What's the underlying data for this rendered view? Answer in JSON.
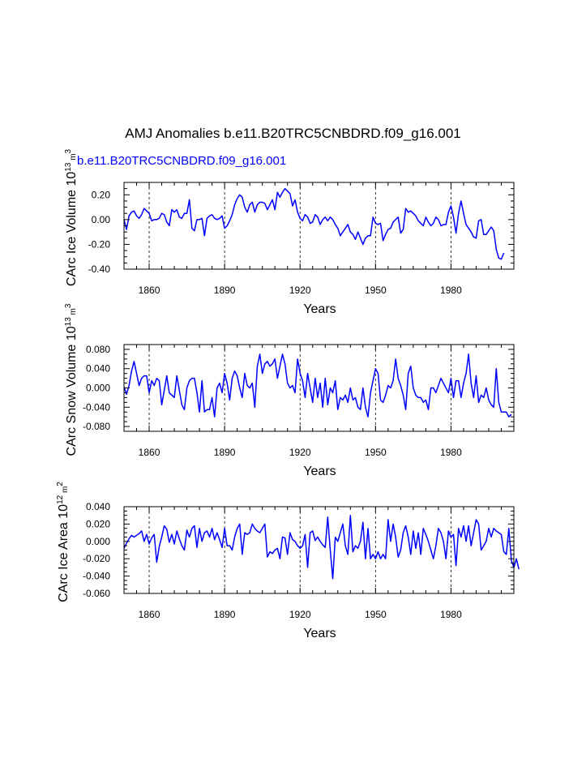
{
  "title": "AMJ Anomalies b.e11.B20TRC5CNBDRD.f09_g16.001",
  "case_label": "b.e11.B20TRC5CNBDRD.f09_g16.001",
  "colors": {
    "series": "#0000ff",
    "axis": "#000000",
    "refline": "#000000"
  },
  "chart_data": [
    {
      "type": "line",
      "ylabel": "CArc Ice Volume 10^13 m^3",
      "ylabel_parts": {
        "main": "CArc Ice Volume 10",
        "exp1": "13",
        "mid": " m",
        "exp2": "3"
      },
      "xlabel": "Years",
      "xlim": [
        1850,
        2005
      ],
      "ylim": [
        -0.4,
        0.3
      ],
      "xticks": [
        1860,
        1890,
        1920,
        1950,
        1980
      ],
      "yticks": [
        -0.4,
        -0.2,
        0.0,
        0.2
      ],
      "ytick_labels": [
        "-0.40",
        "-0.20",
        "0.00",
        "0.20"
      ],
      "refline_years": [
        1860,
        1890,
        1920,
        1950,
        1980
      ],
      "series": [
        {
          "name": "b.e11.B20TRC5CNBDRD.f09_g16.001",
          "x_start": 1850,
          "values": [
            0.0,
            -0.08,
            0.03,
            0.06,
            0.07,
            0.03,
            0.01,
            0.04,
            0.09,
            0.07,
            0.05,
            -0.01,
            0.0,
            0.0,
            0.01,
            0.05,
            0.04,
            -0.02,
            -0.05,
            0.08,
            0.06,
            0.08,
            0.02,
            0.01,
            0.05,
            0.05,
            0.16,
            -0.07,
            -0.09,
            0.0,
            0.0,
            0.01,
            -0.13,
            0.01,
            0.03,
            0.04,
            0.01,
            0.0,
            0.01,
            0.03,
            -0.07,
            -0.05,
            -0.01,
            0.04,
            0.12,
            0.17,
            0.2,
            0.18,
            0.1,
            0.06,
            0.12,
            0.14,
            0.06,
            0.12,
            0.14,
            0.14,
            0.13,
            0.08,
            0.12,
            0.16,
            0.08,
            0.22,
            0.18,
            0.22,
            0.25,
            0.23,
            0.21,
            0.11,
            0.16,
            0.06,
            0.01,
            -0.01,
            0.04,
            0.02,
            -0.03,
            -0.02,
            0.04,
            0.02,
            -0.04,
            0.0,
            0.02,
            -0.01,
            0.02,
            0.0,
            -0.04,
            -0.07,
            -0.13,
            -0.1,
            -0.07,
            -0.04,
            -0.1,
            -0.12,
            -0.16,
            -0.1,
            -0.15,
            -0.2,
            -0.15,
            -0.13,
            -0.13,
            0.02,
            -0.03,
            -0.04,
            -0.03,
            -0.17,
            -0.12,
            -0.08,
            -0.07,
            -0.02,
            0.0,
            0.02,
            -0.11,
            -0.08,
            0.09,
            0.06,
            0.07,
            0.05,
            0.03,
            -0.01,
            -0.03,
            -0.05,
            0.02,
            -0.02,
            -0.05,
            -0.03,
            0.02,
            0.0,
            -0.05,
            -0.04,
            -0.04,
            0.06,
            0.11,
            0.02,
            -0.11,
            0.05,
            0.15,
            0.05,
            -0.04,
            -0.07,
            -0.1,
            -0.14,
            -0.15,
            -0.01,
            0.0,
            -0.12,
            -0.12,
            -0.09,
            -0.06,
            -0.09,
            -0.24,
            -0.31,
            -0.32,
            -0.27
          ]
        }
      ]
    },
    {
      "type": "line",
      "ylabel": "CArc Snow Volume 10^13 m^3",
      "ylabel_parts": {
        "main": "CArc Snow Volume 10",
        "exp1": "13",
        "mid": " m",
        "exp2": "3"
      },
      "xlabel": "Years",
      "xlim": [
        1850,
        2005
      ],
      "ylim": [
        -0.09,
        0.09
      ],
      "xticks": [
        1860,
        1890,
        1920,
        1950,
        1980
      ],
      "yticks": [
        -0.08,
        -0.04,
        0.0,
        0.04,
        0.08
      ],
      "ytick_labels": [
        "-0.080",
        "-0.040",
        "0.000",
        "0.040",
        "0.080"
      ],
      "refline_years": [
        1860,
        1890,
        1920,
        1950,
        1980
      ],
      "series": [
        {
          "name": "b.e11.B20TRC5CNBDRD.f09_g16.001",
          "x_start": 1850,
          "values": [
            0.002,
            -0.013,
            0.005,
            0.035,
            0.055,
            0.03,
            0.005,
            0.02,
            0.025,
            0.025,
            -0.01,
            0.015,
            0.005,
            0.02,
            0.015,
            -0.035,
            -0.005,
            0.025,
            -0.01,
            -0.015,
            -0.02,
            0.025,
            -0.005,
            -0.035,
            -0.045,
            0.0,
            0.015,
            0.02,
            0.02,
            -0.01,
            -0.05,
            0.015,
            -0.05,
            -0.045,
            -0.045,
            -0.02,
            -0.06,
            0.0,
            0.01,
            -0.01,
            0.03,
            0.01,
            -0.025,
            0.02,
            0.035,
            0.025,
            0.0,
            -0.02,
            0.03,
            0.005,
            0.0,
            0.01,
            -0.04,
            0.045,
            0.07,
            0.03,
            0.05,
            0.055,
            0.045,
            0.05,
            0.06,
            0.02,
            0.045,
            0.07,
            0.05,
            0.01,
            0.0,
            0.005,
            -0.01,
            0.06,
            0.03,
            0.015,
            -0.02,
            0.03,
            0.0,
            -0.03,
            0.02,
            -0.02,
            0.01,
            -0.04,
            0.02,
            -0.035,
            0.0,
            -0.01,
            0.015,
            -0.045,
            -0.02,
            -0.025,
            -0.015,
            -0.03,
            0.0,
            -0.025,
            -0.02,
            -0.04,
            -0.045,
            0.0,
            -0.04,
            -0.06,
            -0.01,
            0.015,
            0.04,
            0.03,
            -0.025,
            -0.03,
            -0.015,
            0.005,
            0.0,
            0.015,
            0.06,
            0.02,
            0.005,
            -0.015,
            -0.045,
            0.03,
            0.045,
            0.0,
            -0.015,
            -0.02,
            -0.02,
            -0.03,
            -0.025,
            -0.045,
            0.0,
            0.0,
            -0.01,
            0.005,
            0.02,
            0.01,
            0.0,
            -0.01,
            0.02,
            -0.02,
            0.015,
            0.015,
            -0.02,
            0.01,
            0.03,
            0.07,
            0.01,
            -0.02,
            0.025,
            -0.03,
            -0.015,
            -0.02,
            0.0,
            -0.025,
            -0.035,
            -0.04,
            0.04,
            -0.03,
            -0.05,
            -0.05,
            -0.05,
            -0.06,
            -0.055
          ]
        }
      ]
    },
    {
      "type": "line",
      "ylabel": "CArc Ice Area 10^12 m^2",
      "ylabel_parts": {
        "main": "CArc Ice Area 10",
        "exp1": "12",
        "mid": " m",
        "exp2": "2"
      },
      "xlabel": "Years",
      "xlim": [
        1850,
        2005
      ],
      "ylim": [
        -0.06,
        0.04
      ],
      "xticks": [
        1860,
        1890,
        1920,
        1950,
        1980
      ],
      "yticks": [
        -0.06,
        -0.04,
        -0.02,
        0.0,
        0.02,
        0.04
      ],
      "ytick_labels": [
        "-0.060",
        "-0.040",
        "-0.020",
        "0.000",
        "0.020",
        "0.040"
      ],
      "refline_years": [
        1860,
        1890,
        1920,
        1950,
        1980
      ],
      "series": [
        {
          "name": "b.e11.B20TRC5CNBDRD.f09_g16.001",
          "x_start": 1850,
          "values": [
            -0.008,
            -0.002,
            0.003,
            0.007,
            0.005,
            0.007,
            0.009,
            0.012,
            0.0,
            0.008,
            -0.003,
            0.004,
            0.008,
            -0.024,
            -0.006,
            0.005,
            0.018,
            0.014,
            -0.001,
            0.008,
            -0.003,
            0.012,
            0.003,
            -0.005,
            -0.01,
            0.013,
            0.005,
            0.015,
            0.018,
            -0.007,
            0.015,
            0.0,
            0.01,
            0.012,
            0.005,
            0.015,
            0.002,
            0.01,
            0.002,
            -0.007,
            0.015,
            -0.005,
            -0.005,
            -0.01,
            0.005,
            0.015,
            0.02,
            -0.015,
            0.01,
            0.008,
            0.01,
            0.02,
            0.015,
            0.012,
            0.01,
            0.015,
            0.02,
            -0.018,
            -0.012,
            -0.014,
            -0.01,
            -0.008,
            -0.02,
            0.005,
            0.004,
            -0.015,
            0.01,
            0.002,
            0.0,
            -0.005,
            -0.008,
            -0.005,
            0.008,
            -0.03,
            0.01,
            0.012,
            0.001,
            0.005,
            0.0,
            -0.004,
            -0.007,
            0.028,
            -0.01,
            -0.043,
            0.005,
            0.0,
            0.01,
            0.02,
            -0.005,
            -0.015,
            0.03,
            -0.012,
            -0.005,
            -0.008,
            0.0,
            0.022,
            -0.02,
            0.015,
            -0.02,
            -0.015,
            -0.02,
            -0.012,
            -0.02,
            -0.015,
            -0.02,
            0.025,
            0.0,
            0.02,
            0.005,
            -0.018,
            -0.01,
            0.01,
            0.018,
            0.005,
            -0.015,
            0.012,
            -0.008,
            0.01,
            -0.015,
            0.015,
            0.008,
            0.0,
            -0.01,
            -0.02,
            -0.005,
            0.015,
            0.01,
            0.0,
            -0.02,
            0.012,
            0.005,
            0.008,
            -0.028,
            0.015,
            0.005,
            0.018,
            0.0,
            0.018,
            -0.005,
            0.01,
            0.025,
            0.02,
            -0.01,
            -0.005,
            0.0,
            0.015,
            0.005,
            0.015,
            0.012,
            0.01,
            0.008,
            -0.012,
            -0.015,
            0.015,
            -0.022,
            -0.03,
            -0.02,
            -0.032
          ]
        }
      ]
    }
  ]
}
